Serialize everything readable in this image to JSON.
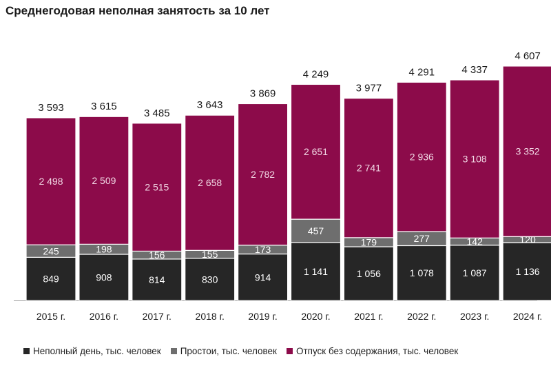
{
  "chart_data": {
    "type": "bar",
    "stacked": true,
    "title": "Среднегодовая неполная занятость за 10 лет",
    "categories": [
      "2015 г.",
      "2016 г.",
      "2017 г.",
      "2018 г.",
      "2019 г.",
      "2020 г.",
      "2021 г.",
      "2022 г.",
      "2023 г.",
      "2024 г."
    ],
    "series": [
      {
        "name": "Неполный день, тыс. человек",
        "color": "#262626",
        "values": [
          849,
          908,
          814,
          830,
          914,
          1141,
          1056,
          1078,
          1087,
          1136
        ],
        "labels": [
          "849",
          "908",
          "814",
          "830",
          "914",
          "1 141",
          "1 056",
          "1 078",
          "1 087",
          "1 136"
        ]
      },
      {
        "name": "Простои, тыс. человек",
        "color": "#6e6e6e",
        "values": [
          245,
          198,
          156,
          155,
          173,
          457,
          179,
          277,
          142,
          120
        ],
        "labels": [
          "245",
          "198",
          "156",
          "155",
          "173",
          "457",
          "179",
          "277",
          "142",
          "120"
        ]
      },
      {
        "name": "Отпуск без содержания, тыс. человек",
        "color": "#8c0b4a",
        "values": [
          2498,
          2509,
          2515,
          2658,
          2782,
          2651,
          2741,
          2936,
          3108,
          3352
        ],
        "labels": [
          "2 498",
          "2 509",
          "2 515",
          "2 658",
          "2 782",
          "2 651",
          "2 741",
          "2 936",
          "3 108",
          "3 352"
        ]
      }
    ],
    "totals": [
      3593,
      3615,
      3485,
      3643,
      3869,
      4249,
      3977,
      4291,
      4337,
      4607
    ],
    "total_labels": [
      "3 593",
      "3 615",
      "3 485",
      "3 643",
      "3 869",
      "4 249",
      "3 977",
      "4 291",
      "4 337",
      "4 607"
    ],
    "ylim": [
      0,
      5100
    ],
    "grid": false,
    "legend_position": "bottom"
  }
}
